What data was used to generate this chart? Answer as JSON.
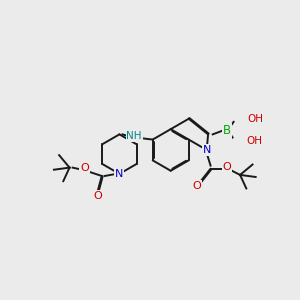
{
  "background_color": "#ebebeb",
  "bond_color": "#1a1a1a",
  "colors": {
    "N": "#0000cc",
    "O": "#cc0000",
    "B": "#00aa00",
    "NH": "#008888",
    "C": "#1a1a1a"
  }
}
